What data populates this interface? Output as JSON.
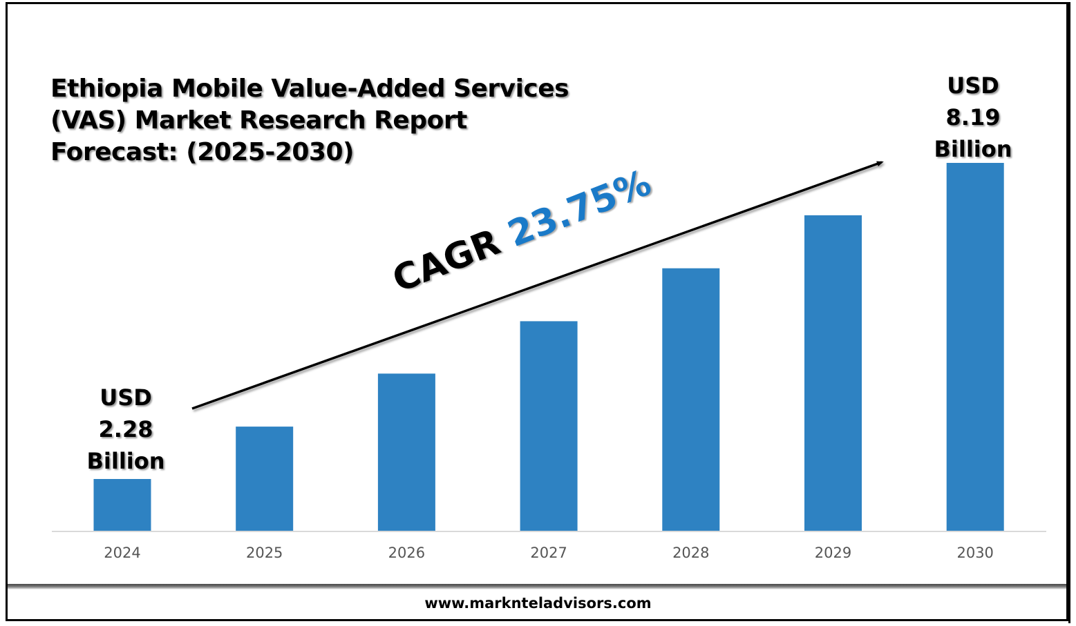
{
  "chart_data": {
    "type": "bar",
    "title": "Ethiopia Mobile Value-Added Services (VAS) Market Research Report Forecast: (2025-2030)",
    "title_lines": [
      "Ethiopia Mobile Value-Added Services",
      "(VAS) Market Research Report",
      "Forecast: (2025-2030)"
    ],
    "categories": [
      "2024",
      "2025",
      "2026",
      "2027",
      "2028",
      "2029",
      "2030"
    ],
    "values": [
      2.28,
      3.26,
      4.25,
      5.23,
      6.22,
      7.21,
      8.19
    ],
    "value_notes": "Only 2024 (2.28) and 2030 (8.19) are labeled; intermediate values estimated from bar heights",
    "unit": "USD Billion",
    "xlabel": "",
    "ylabel": "",
    "grid": false,
    "legend": "none",
    "bar_color": "#2e82c2",
    "annotations": {
      "start": {
        "category": "2024",
        "lines": [
          "USD",
          "2.28",
          "Billion"
        ]
      },
      "end": {
        "category": "2030",
        "lines": [
          "USD",
          "8.19",
          "Billion"
        ]
      },
      "cagr": {
        "label": "CAGR",
        "value": "23.75%",
        "color": "#1a7ac8"
      }
    }
  },
  "footer": {
    "website": "www.marknteladvisors.com"
  }
}
